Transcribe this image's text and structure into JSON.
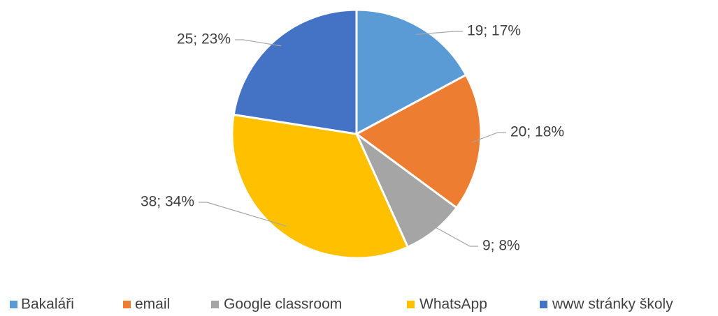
{
  "chart_data": {
    "type": "pie",
    "categories": [
      "Bakaláři",
      "email",
      "Google classroom",
      "WhatsApp",
      "www stránky školy"
    ],
    "values": [
      19,
      20,
      9,
      38,
      25
    ],
    "value_labels": [
      "19; 17%",
      "20; 18%",
      "9; 8%",
      "38; 34%",
      "25; 23%"
    ],
    "colors": [
      "#5b9bd5",
      "#ed7d31",
      "#a5a5a5",
      "#ffc000",
      "#4472c4"
    ],
    "legend": "bottom"
  }
}
